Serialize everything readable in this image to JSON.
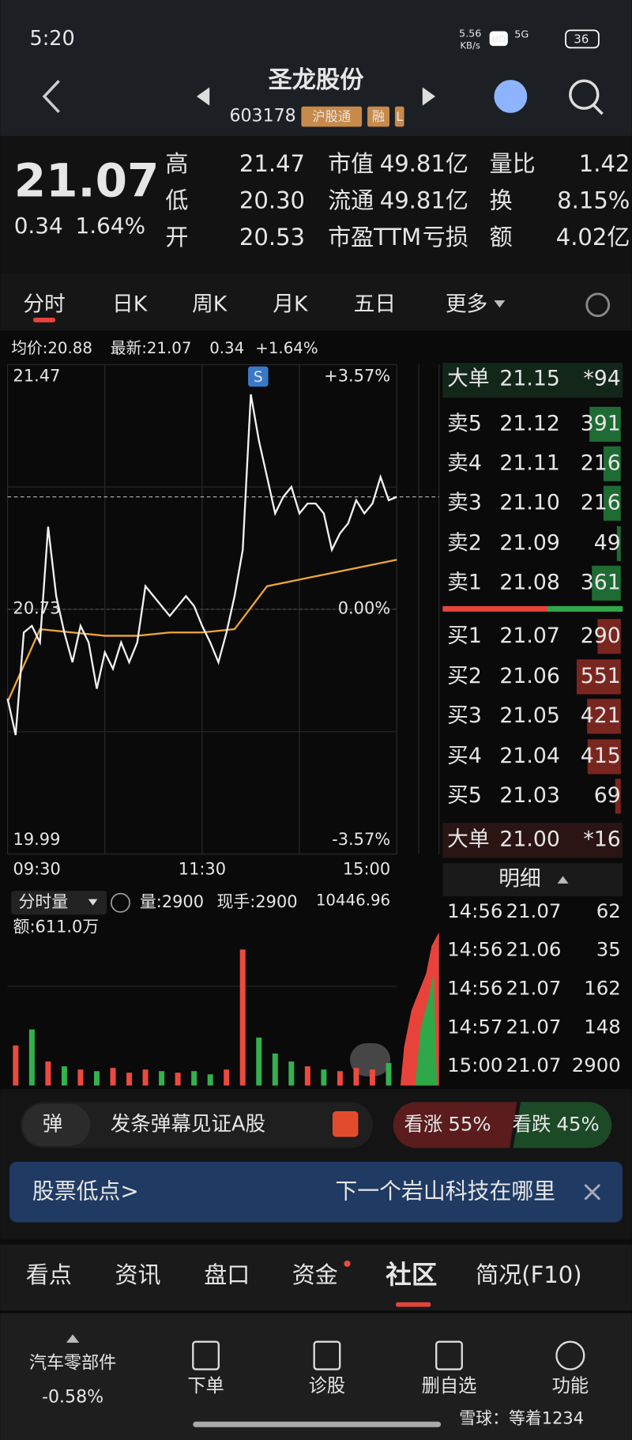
{
  "status": {
    "time": "5:20",
    "net_speed": "5.56",
    "net_unit": "KB/s",
    "hd": "HD",
    "signal": "5G",
    "battery": "36"
  },
  "header": {
    "name": "圣龙股份",
    "code": "603178",
    "tags": [
      "沪股通",
      "融",
      "L"
    ]
  },
  "quote": {
    "price": "21.07",
    "change": "0.34",
    "change_pct": "1.64%",
    "stats": [
      [
        "高",
        "21.47"
      ],
      [
        "低",
        "20.30"
      ],
      [
        "开",
        "20.53"
      ]
    ],
    "stats2": [
      [
        "市值",
        "49.81亿"
      ],
      [
        "流通",
        "49.81亿"
      ],
      [
        "市盈TTM",
        "亏损"
      ]
    ],
    "stats3": [
      [
        "量比",
        "1.42"
      ],
      [
        "换",
        "8.15%"
      ],
      [
        "额",
        "4.02亿"
      ]
    ]
  },
  "tabs": [
    "分时",
    "日K",
    "周K",
    "月K",
    "五日",
    "更多"
  ],
  "summary": {
    "avg_label": "均价:20.88",
    "latest_label": "最新:21.07",
    "change": "0.34",
    "change_pct": "+1.64%"
  },
  "intraday": {
    "price_labels": [
      "21.47",
      "20.73",
      "19.99"
    ],
    "pct_labels": [
      "+3.57%",
      "0.00%",
      "-3.57%"
    ],
    "times": [
      "09:30",
      "11:30",
      "15:00"
    ],
    "marker": "S",
    "ylim": [
      19.99,
      21.47
    ],
    "price": [
      20.46,
      20.35,
      20.66,
      20.68,
      20.63,
      20.98,
      20.77,
      20.66,
      20.57,
      20.68,
      20.63,
      20.49,
      20.6,
      20.55,
      20.63,
      20.57,
      20.63,
      20.8,
      20.77,
      20.74,
      20.71,
      20.74,
      20.77,
      20.74,
      20.68,
      20.63,
      20.57,
      20.66,
      20.77,
      20.91,
      21.38,
      21.24,
      21.13,
      21.02,
      21.07,
      21.1,
      21.02,
      21.05,
      21.05,
      21.02,
      20.91,
      20.96,
      20.99,
      21.06,
      21.02,
      21.05,
      21.13,
      21.06,
      21.07
    ],
    "avg": [
      20.45,
      20.67,
      20.66,
      20.65,
      20.65,
      20.66,
      20.66,
      20.67,
      20.8,
      20.82,
      20.84,
      20.86,
      20.88
    ],
    "volume_label": "分时量",
    "volume_now": "量:2900",
    "hand_now": "现手:2900",
    "volume_max": "10446.96",
    "amount": "额:611.0万",
    "volume": [
      2500,
      3500,
      1500,
      1200,
      1000,
      900,
      1100,
      800,
      1000,
      900,
      800,
      900,
      700,
      1000,
      8500,
      3000,
      2000,
      1500,
      1200,
      1000,
      900,
      1100,
      1000,
      1400
    ]
  },
  "order_book": {
    "big_sell": [
      "大单",
      "21.15",
      "*94"
    ],
    "asks": [
      [
        "卖5",
        "21.12",
        "391"
      ],
      [
        "卖4",
        "21.11",
        "216"
      ],
      [
        "卖3",
        "21.10",
        "216"
      ],
      [
        "卖2",
        "21.09",
        "49"
      ],
      [
        "卖1",
        "21.08",
        "361"
      ]
    ],
    "bids": [
      [
        "买1",
        "21.07",
        "290"
      ],
      [
        "买2",
        "21.06",
        "551"
      ],
      [
        "买3",
        "21.05",
        "421"
      ],
      [
        "买4",
        "21.04",
        "415"
      ],
      [
        "买5",
        "21.03",
        "69"
      ]
    ],
    "big_buy": [
      "大单",
      "21.00",
      "*16"
    ]
  },
  "trades": {
    "title": "明细",
    "rows": [
      [
        "14:56",
        "21.07",
        "62"
      ],
      [
        "14:56",
        "21.06",
        "35"
      ],
      [
        "14:56",
        "21.07",
        "162"
      ],
      [
        "14:57",
        "21.07",
        "148"
      ],
      [
        "15:00",
        "21.07",
        "2900"
      ]
    ]
  },
  "barrage": {
    "icon": "弹",
    "placeholder": "发条弹幕见证A股",
    "bull_label": "看涨",
    "bull": 55,
    "bull_text": "55%",
    "bear_label": "看跌",
    "bear": 45,
    "bear_text": "45%"
  },
  "banner": {
    "left": "股票低点>",
    "right": "下一个岩山科技在哪里"
  },
  "sections": [
    "看点",
    "资讯",
    "盘口",
    "资金",
    "社区",
    "简况(F10)"
  ],
  "bottom": {
    "sector": "汽车零部件",
    "sector_change": "-0.58%",
    "actions": [
      "下单",
      "诊股",
      "删自选",
      "功能"
    ],
    "watermark": "雪球：等着1234"
  }
}
